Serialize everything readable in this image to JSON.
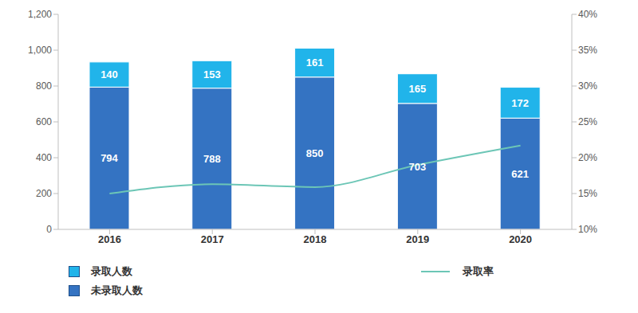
{
  "chart_data": {
    "type": "bar",
    "stacked": true,
    "grid": false,
    "categories": [
      "2016",
      "2017",
      "2018",
      "2019",
      "2020"
    ],
    "ylim": [
      0,
      1200
    ],
    "yticks": [
      0,
      200,
      400,
      600,
      800,
      {
        "value": 1000,
        "label": "1,000"
      },
      {
        "value": 1200,
        "label": "1,200"
      }
    ],
    "y2lim": [
      10,
      40
    ],
    "y2ticks": [
      {
        "value": 10,
        "label": "10%"
      },
      {
        "value": 15,
        "label": "15%"
      },
      {
        "value": 20,
        "label": "20%"
      },
      {
        "value": 25,
        "label": "25%"
      },
      {
        "value": 30,
        "label": "30%"
      },
      {
        "value": 35,
        "label": "35%"
      },
      {
        "value": 40,
        "label": "40%"
      }
    ],
    "series": [
      {
        "name": "录取人数",
        "type": "bar",
        "color": "#21b4ea",
        "data_labels": true,
        "values": [
          140,
          153,
          161,
          165,
          172
        ]
      },
      {
        "name": "未录取人数",
        "type": "bar",
        "color": "#3473c2",
        "data_labels": true,
        "values": [
          794,
          788,
          850,
          703,
          621
        ]
      },
      {
        "name": "录取率",
        "type": "line",
        "axis": "y2",
        "color": "#6cc6b6",
        "marker": "none",
        "line_style": "solid",
        "data_labels": false,
        "values": [
          15,
          16.3,
          15.9,
          19,
          21.7
        ]
      }
    ]
  }
}
